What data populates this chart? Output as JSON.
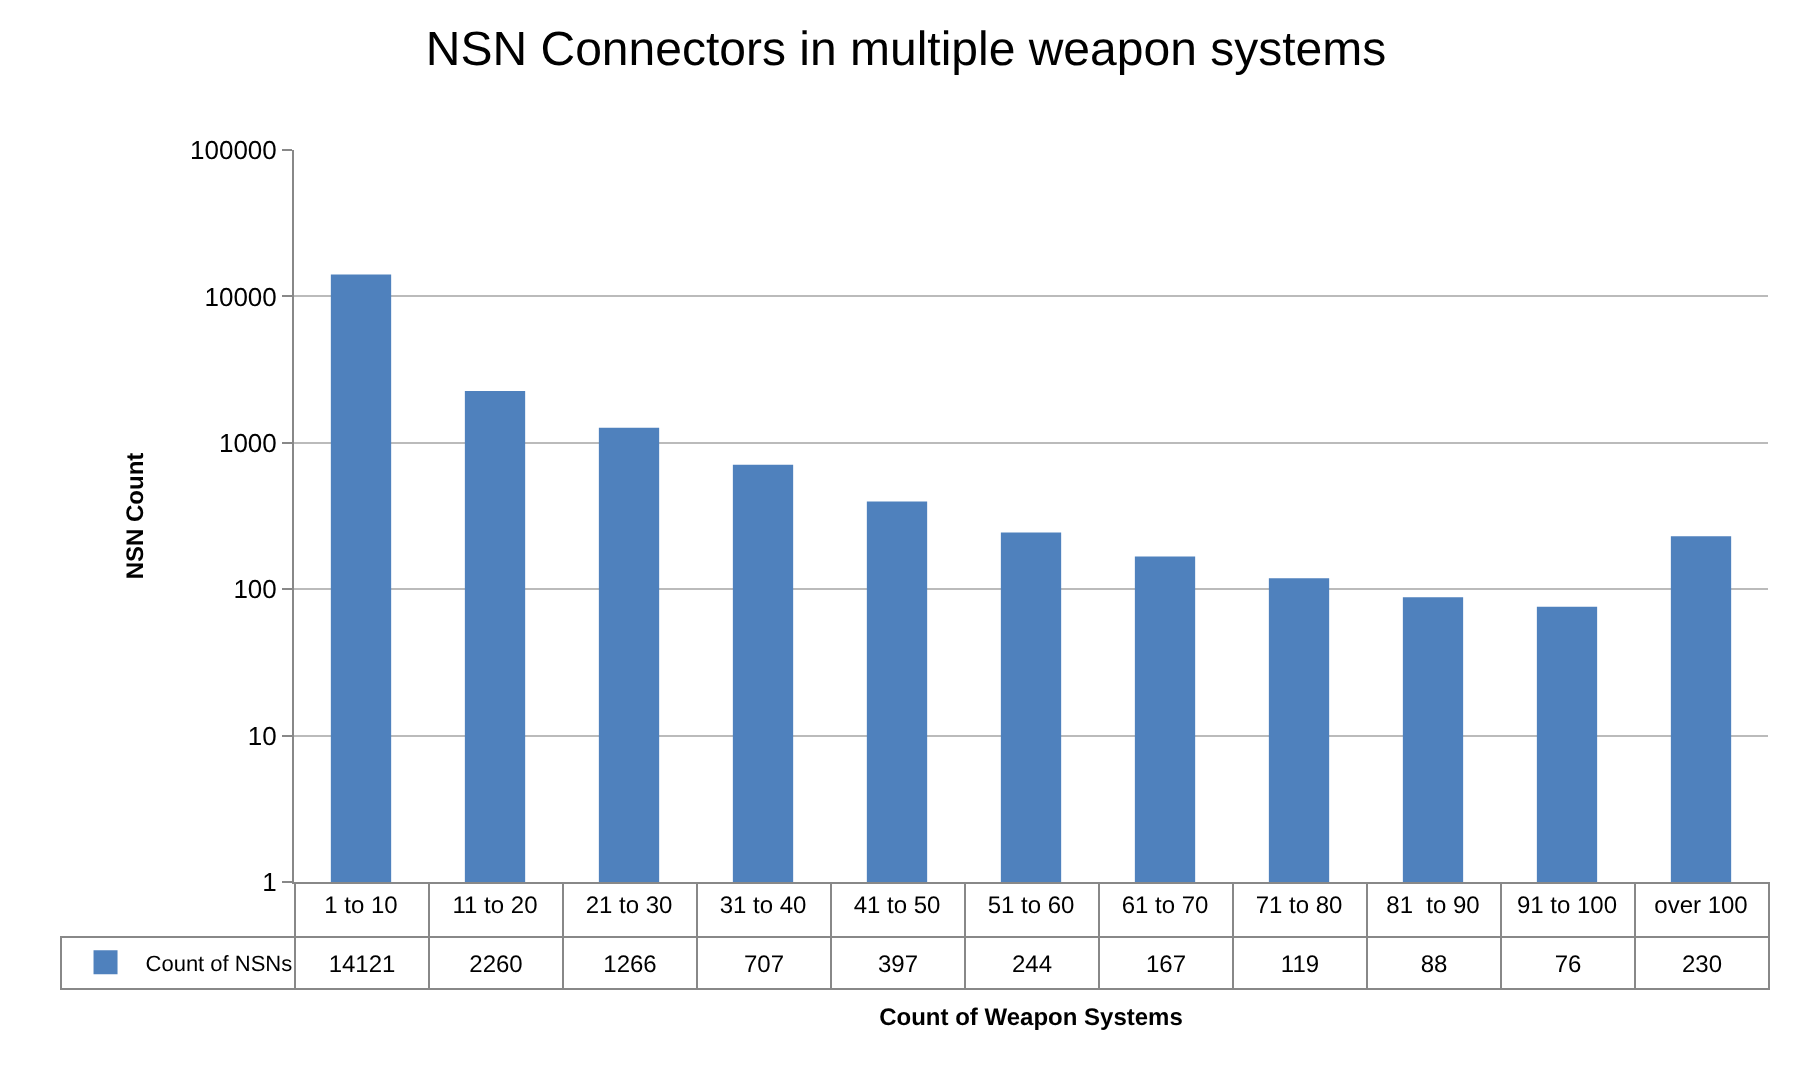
{
  "chart_data": {
    "type": "bar",
    "title": "NSN Connectors in multiple weapon systems",
    "xlabel": "Count of Weapon Systems",
    "ylabel": "NSN Count",
    "categories": [
      "1 to 10",
      "11 to 20",
      "21 to 30",
      "31 to 40",
      "41 to 50",
      "51 to 60",
      "61 to 70",
      "71 to 80",
      "81  to 90",
      "91 to 100",
      "over 100"
    ],
    "series": [
      {
        "name": "Count of NSNs",
        "color": "#4f81bd",
        "values": [
          14121,
          2260,
          1266,
          707,
          397,
          244,
          167,
          119,
          88,
          76,
          230
        ]
      }
    ],
    "log": true,
    "ylim": [
      1,
      100000
    ],
    "yticks": [
      1,
      10,
      100,
      1000,
      10000,
      100000
    ],
    "grid": "y",
    "legend": "bottom left",
    "data_labels": true
  }
}
